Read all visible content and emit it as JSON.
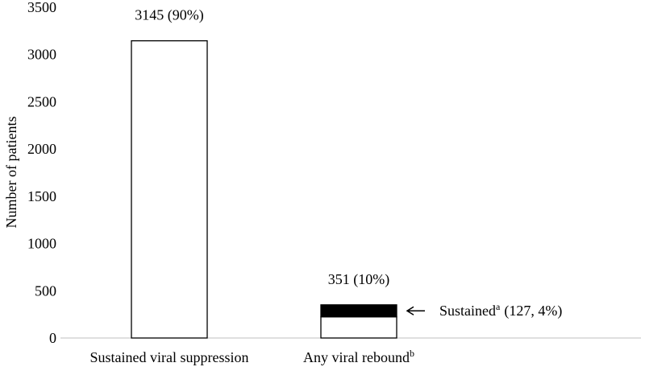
{
  "chart_data": {
    "type": "bar",
    "ylabel": "Number of patients",
    "categories": [
      "Sustained viral suppression",
      "Any viral rebound"
    ],
    "category_superscripts": [
      null,
      "b"
    ],
    "ylim": [
      0,
      3500
    ],
    "yticks": [
      0,
      500,
      1000,
      1500,
      2000,
      2500,
      3000,
      3500
    ],
    "series": [
      {
        "color": "#ffffff",
        "values": [
          3145,
          224
        ]
      },
      {
        "name": "Sustained",
        "name_superscript": "a",
        "color": "#000000",
        "values": [
          null,
          127
        ],
        "value_labels": [
          null,
          "(127, 4%)"
        ]
      }
    ],
    "totals": {
      "values": [
        3145,
        351
      ],
      "value_labels": [
        "3145 (90%)",
        "351 (10%)"
      ]
    }
  }
}
